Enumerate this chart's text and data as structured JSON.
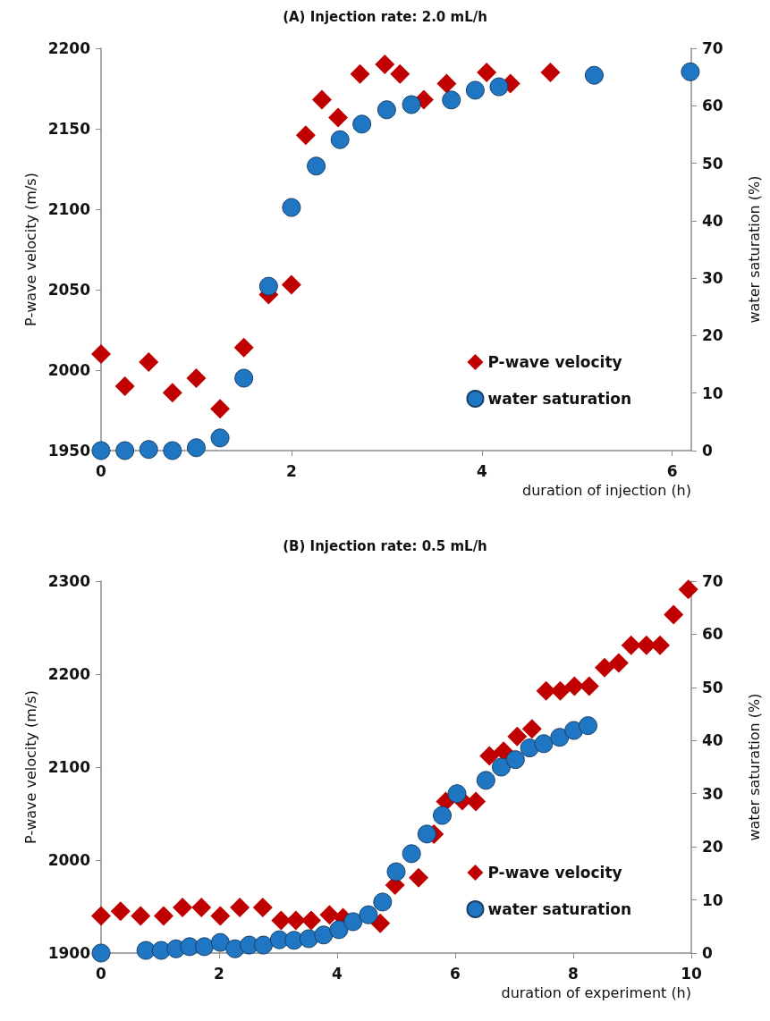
{
  "chart_data": [
    {
      "type": "scatter",
      "title": "(A) Injection rate: 2.0 mL/h",
      "xlabel": "duration of injection (h)",
      "ylabel": "P-wave velocity (m/s)",
      "y2label": "water saturation (%)",
      "xlim": [
        0,
        6.2
      ],
      "xticks": [
        0,
        2,
        4,
        6
      ],
      "ylim": [
        1950,
        2200
      ],
      "yticks": [
        1950,
        2000,
        2050,
        2100,
        2150,
        2200
      ],
      "y2lim": [
        0,
        70
      ],
      "y2ticks": [
        0,
        10,
        20,
        30,
        40,
        50,
        60,
        70
      ],
      "legend": "bottom right",
      "series": [
        {
          "name": "P-wave velocity",
          "color": "#c00000",
          "marker": "diamond",
          "x": [
            0,
            0.25,
            0.5,
            0.75,
            1.0,
            1.25,
            1.5,
            1.76,
            2.0,
            2.15,
            2.32,
            2.49,
            2.72,
            2.98,
            3.14,
            3.39,
            3.63,
            4.05,
            4.3,
            4.72
          ],
          "values": [
            2010,
            1990,
            2005,
            1986,
            1995,
            1976,
            2014,
            2047,
            2053,
            2146,
            2168,
            2157,
            2184,
            2190,
            2184,
            2168,
            2178,
            2185,
            2178,
            2185
          ]
        },
        {
          "name": "water saturation",
          "color": "#1f77c4",
          "marker": "circle",
          "axis": "y2",
          "x": [
            0,
            0.25,
            0.5,
            0.75,
            1.0,
            1.25,
            1.5,
            1.76,
            2.0,
            2.26,
            2.51,
            2.74,
            3.0,
            3.26,
            3.68,
            3.93,
            4.18,
            5.18,
            6.19
          ],
          "values": [
            0,
            0,
            0.2,
            0,
            0.5,
            2.2,
            12.6,
            28.6,
            42.3,
            49.5,
            54.1,
            56.8,
            59.3,
            60.2,
            61.0,
            62.7,
            63.3,
            65.3,
            65.9
          ]
        }
      ]
    },
    {
      "type": "scatter",
      "title": "(B) Injection rate: 0.5 mL/h",
      "xlabel": "duration of experiment (h)",
      "ylabel": "P-wave velocity (m/s)",
      "y2label": "water saturation (%)",
      "xlim": [
        0,
        10
      ],
      "xticks": [
        0,
        2,
        4,
        6,
        8,
        10
      ],
      "ylim": [
        1900,
        2300
      ],
      "yticks": [
        1900,
        2000,
        2100,
        2200,
        2300
      ],
      "y2lim": [
        0,
        70
      ],
      "y2ticks": [
        0,
        10,
        20,
        30,
        40,
        50,
        60,
        70
      ],
      "legend": "bottom right",
      "series": [
        {
          "name": "P-wave velocity",
          "color": "#c00000",
          "marker": "diamond",
          "x": [
            0,
            0.33,
            0.67,
            1.06,
            1.38,
            1.7,
            2.02,
            2.35,
            2.74,
            3.05,
            3.3,
            3.56,
            3.87,
            4.1,
            4.73,
            4.98,
            5.38,
            5.64,
            5.84,
            6.12,
            6.35,
            6.58,
            6.82,
            7.05,
            7.3,
            7.54,
            7.78,
            8.02,
            8.27,
            8.53,
            8.77,
            8.98,
            9.24,
            9.47,
            9.7,
            9.95
          ],
          "values": [
            1940,
            1945,
            1940,
            1940,
            1949,
            1949,
            1940,
            1949,
            1949,
            1935,
            1935,
            1935,
            1941,
            1938,
            1932,
            1973,
            1981,
            2028,
            2063,
            2064,
            2063,
            2112,
            2117,
            2133,
            2141,
            2182,
            2182,
            2187,
            2187,
            2207,
            2212,
            2231,
            2231,
            2231,
            2264,
            2291
          ]
        },
        {
          "name": "water saturation",
          "color": "#1f77c4",
          "marker": "circle",
          "axis": "y2",
          "x": [
            0,
            0.76,
            1.02,
            1.27,
            1.5,
            1.75,
            2.02,
            2.27,
            2.51,
            2.75,
            3.02,
            3.27,
            3.52,
            3.77,
            4.03,
            4.27,
            4.53,
            4.77,
            5.0,
            5.26,
            5.52,
            5.78,
            6.03,
            6.52,
            6.78,
            7.02,
            7.26,
            7.5,
            7.77,
            8.01,
            8.25
          ],
          "values": [
            0,
            0.5,
            0.5,
            0.8,
            1.2,
            1.2,
            2.0,
            0.8,
            1.5,
            1.5,
            2.5,
            2.4,
            2.7,
            3.4,
            4.4,
            5.9,
            7.2,
            9.6,
            15.3,
            18.7,
            22.4,
            25.9,
            30.0,
            32.5,
            35.0,
            36.4,
            38.6,
            39.4,
            40.6,
            41.9,
            42.8
          ]
        }
      ]
    }
  ]
}
